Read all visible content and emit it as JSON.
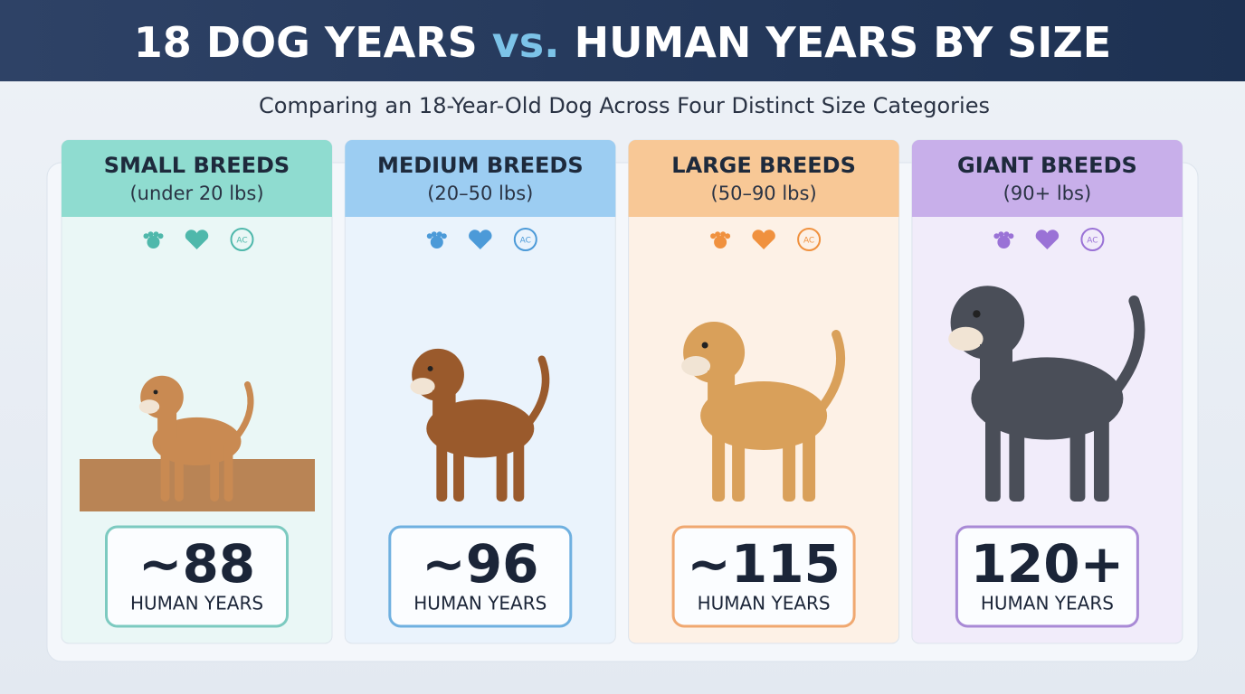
{
  "header": {
    "title_start": "18 DOG YEARS",
    "title_vs": "vs.",
    "title_end": "HUMAN YEARS BY SIZE"
  },
  "subtitle": "Comparing an 18-Year-Old Dog Across Four Distinct Size Categories",
  "icon_text": "AC",
  "cards": [
    {
      "name": "SMALL BREEDS",
      "range": "(under 20 lbs)",
      "value": "~88",
      "unit": "HUMAN YEARS"
    },
    {
      "name": "MEDIUM BREEDS",
      "range": "(20–50 lbs)",
      "value": "~96",
      "unit": "HUMAN YEARS"
    },
    {
      "name": "LARGE BREEDS",
      "range": "(50–90 lbs)",
      "value": "~115",
      "unit": "HUMAN YEARS"
    },
    {
      "name": "GIANT BREEDS",
      "range": "(90+ lbs)",
      "value": "120+",
      "unit": "HUMAN YEARS"
    }
  ]
}
